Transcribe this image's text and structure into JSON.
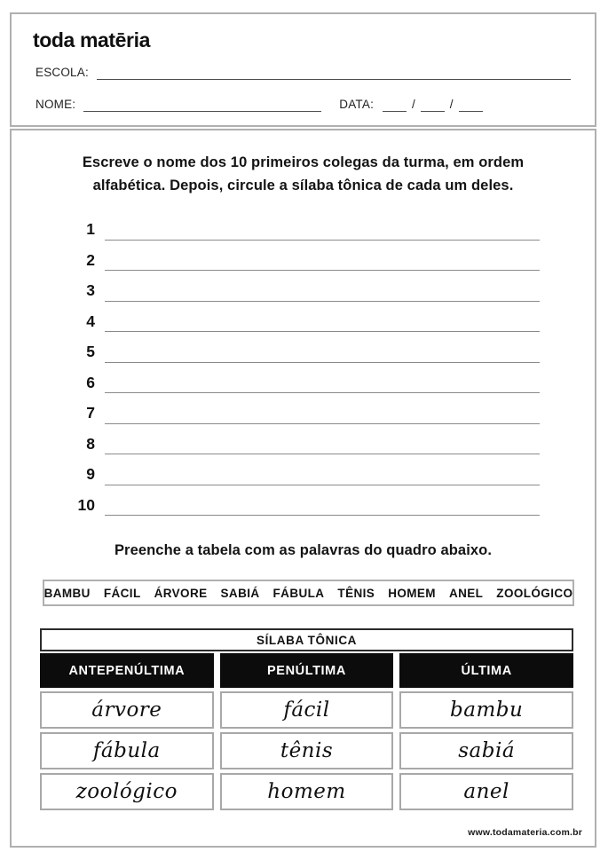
{
  "brand": {
    "logo_text": "toda matēria",
    "footer_url": "www.todamateria.com.br"
  },
  "header": {
    "school_label": "ESCOLA:",
    "name_label": "NOME:",
    "date_label": "DATA:",
    "date_separator": "/"
  },
  "exercise1": {
    "instruction_line1": "Escreve o nome dos 10 primeiros colegas da turma, em ordem",
    "instruction_line2": "alfabética. Depois, circule a sílaba tônica de cada um deles.",
    "numbers": [
      "1",
      "2",
      "3",
      "4",
      "5",
      "6",
      "7",
      "8",
      "9",
      "10"
    ]
  },
  "exercise2": {
    "instruction": "Preenche a tabela com as palavras do quadro abaixo.",
    "word_bank": [
      "BAMBU",
      "FÁCIL",
      "ÁRVORE",
      "SABIÁ",
      "FÁBULA",
      "TÊNIS",
      "HOMEM",
      "ANEL",
      "ZOOLÓGICO"
    ],
    "table": {
      "title": "SÍLABA TÔNICA",
      "columns": [
        "ANTEPENÚLTIMA",
        "PENÚLTIMA",
        "ÚLTIMA"
      ],
      "rows": [
        [
          "árvore",
          "fácil",
          "bambu"
        ],
        [
          "fábula",
          "tênis",
          "sabiá"
        ],
        [
          "zoológico",
          "homem",
          "anel"
        ]
      ]
    }
  }
}
